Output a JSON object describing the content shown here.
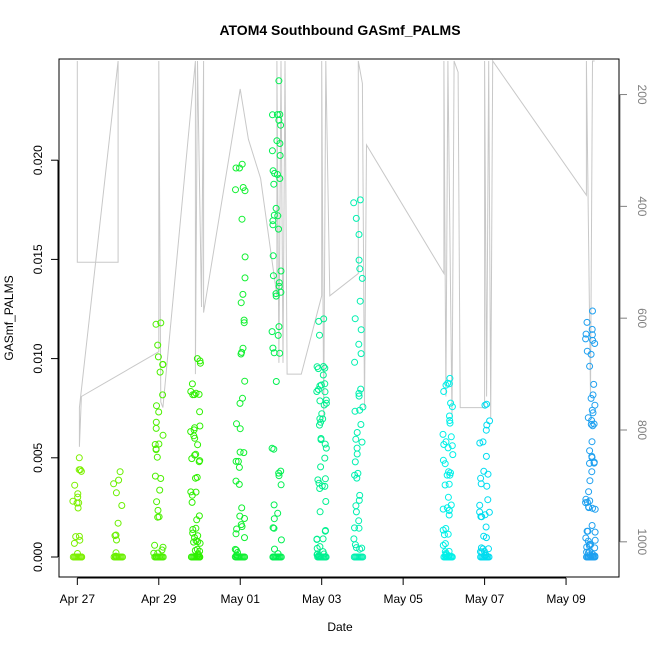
{
  "chart_data": {
    "type": "scatter",
    "title": "ATOM4 Southbound GASmf_PALMS",
    "xlabel": "Date",
    "ylabel": "GASmf_PALMS",
    "x_ticks": [
      "Apr 27",
      "Apr 29",
      "May 01",
      "May 03",
      "May 05",
      "May 07",
      "May 09"
    ],
    "x_tick_days": [
      0,
      2,
      4,
      6,
      8,
      10,
      12
    ],
    "xlim_days": [
      -0.45,
      13.3
    ],
    "ylim": [
      0,
      0.025
    ],
    "y_ticks": [
      0.0,
      0.005,
      0.01,
      0.015,
      0.02
    ],
    "y_tick_labels": [
      "0.000",
      "0.005",
      "0.010",
      "0.015",
      "0.020"
    ],
    "right_axis": {
      "ticks": [
        200,
        400,
        600,
        800,
        1000
      ],
      "labels": [
        "200",
        "400",
        "600",
        "800",
        "1000"
      ],
      "range_top_to_bottom": [
        140,
        1020
      ],
      "color": "#808080",
      "series_color": "#c8c8c8"
    },
    "grid": false,
    "flights": [
      {
        "day": 0.0,
        "ymax": 0.005,
        "count": 16,
        "color": "#7cf000"
      },
      {
        "day": 1.0,
        "ymax": 0.0043,
        "count": 10,
        "color": "#6af000"
      },
      {
        "day": 2.0,
        "ymax": 0.0118,
        "count": 30,
        "color": "#4cf000"
      },
      {
        "day": 2.9,
        "ymax": 0.01,
        "count": 45,
        "color": "#2ef000"
      },
      {
        "day": 4.0,
        "ymax": 0.0198,
        "count": 40,
        "color": "#10f030"
      },
      {
        "day": 4.9,
        "ymax": 0.024,
        "count": 50,
        "color": "#00f050"
      },
      {
        "day": 6.0,
        "ymax": 0.012,
        "count": 50,
        "color": "#00f090"
      },
      {
        "day": 6.9,
        "ymax": 0.018,
        "count": 40,
        "color": "#00f0b0"
      },
      {
        "day": 9.1,
        "ymax": 0.009,
        "count": 45,
        "color": "#00f0e8"
      },
      {
        "day": 10.0,
        "ymax": 0.0077,
        "count": 30,
        "color": "#00dcf0"
      },
      {
        "day": 12.6,
        "ymax": 0.0124,
        "count": 60,
        "color": "#1ea0f0"
      }
    ],
    "pressure_path": [
      [
        0.0,
        140
      ],
      [
        0.0,
        500
      ],
      [
        1.0,
        500
      ],
      [
        1.0,
        140
      ],
      [
        0.05,
        760
      ],
      [
        0.05,
        830
      ],
      [
        0.1,
        740
      ],
      [
        2.0,
        660
      ],
      [
        2.0,
        140
      ],
      [
        2.05,
        750
      ],
      [
        2.1,
        760
      ],
      [
        2.9,
        140
      ],
      [
        2.9,
        700
      ],
      [
        2.95,
        140
      ],
      [
        3.05,
        580
      ],
      [
        3.1,
        140
      ],
      [
        3.1,
        590
      ],
      [
        4.0,
        190
      ],
      [
        4.2,
        280
      ],
      [
        4.5,
        350
      ],
      [
        4.9,
        560
      ],
      [
        4.9,
        140
      ],
      [
        4.95,
        680
      ],
      [
        5.0,
        140
      ],
      [
        5.05,
        680
      ],
      [
        5.1,
        140
      ],
      [
        5.15,
        700
      ],
      [
        5.5,
        700
      ],
      [
        6.0,
        560
      ],
      [
        6.0,
        140
      ],
      [
        6.05,
        780
      ],
      [
        6.1,
        140
      ],
      [
        6.2,
        560
      ],
      [
        6.9,
        520
      ],
      [
        6.9,
        140
      ],
      [
        7.0,
        180
      ],
      [
        7.05,
        760
      ],
      [
        7.1,
        290
      ],
      [
        9.0,
        520
      ],
      [
        9.0,
        140
      ],
      [
        9.05,
        740
      ],
      [
        9.1,
        140
      ],
      [
        9.2,
        780
      ],
      [
        9.25,
        140
      ],
      [
        9.35,
        160
      ],
      [
        9.4,
        760
      ],
      [
        10.0,
        760
      ],
      [
        10.0,
        140
      ],
      [
        10.05,
        740
      ],
      [
        10.1,
        140
      ],
      [
        10.15,
        780
      ],
      [
        10.2,
        140
      ],
      [
        12.5,
        380
      ],
      [
        12.5,
        140
      ],
      [
        12.6,
        740
      ],
      [
        12.65,
        140
      ],
      [
        12.7,
        140
      ]
    ]
  }
}
